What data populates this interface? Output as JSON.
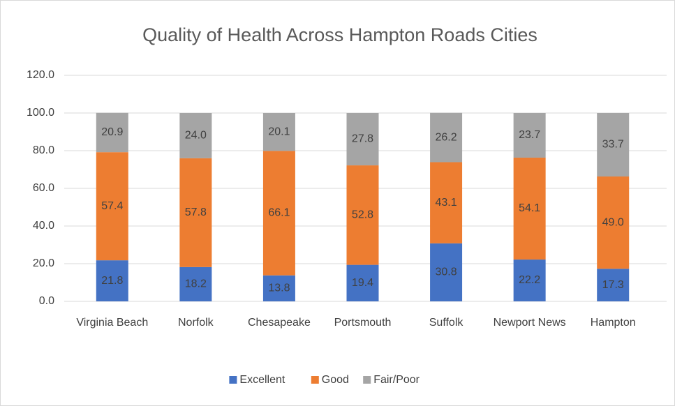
{
  "chart_data": {
    "type": "stacked_bar",
    "title": "Quality of Health Across Hampton Roads Cities",
    "categories": [
      "Virginia Beach",
      "Norfolk",
      "Chesapeake",
      "Portsmouth",
      "Suffolk",
      "Newport News",
      "Hampton"
    ],
    "series": [
      {
        "name": "Excellent",
        "color": "#4472c4",
        "values": [
          21.8,
          18.2,
          13.8,
          19.4,
          30.8,
          22.2,
          17.3
        ],
        "value_labels": [
          "21.8",
          "18.2",
          "13.8",
          "19.4",
          "30.8",
          "22.2",
          "17.3"
        ]
      },
      {
        "name": "Good",
        "color": "#ed7d31",
        "values": [
          57.4,
          57.8,
          66.1,
          52.8,
          43.1,
          54.1,
          49.0
        ],
        "value_labels": [
          "57.4",
          "57.8",
          "66.1",
          "52.8",
          "43.1",
          "54.1",
          "49.0"
        ]
      },
      {
        "name": "Fair/Poor",
        "color": "#a5a5a5",
        "values": [
          20.9,
          24.0,
          20.1,
          27.8,
          26.2,
          23.7,
          33.7
        ],
        "value_labels": [
          "20.9",
          "24.0",
          "20.1",
          "27.8",
          "26.2",
          "23.7",
          "33.7"
        ]
      }
    ],
    "ylim": [
      0,
      120
    ],
    "yticks": [
      {
        "value": 0,
        "label": "0.0"
      },
      {
        "value": 20,
        "label": "20.0"
      },
      {
        "value": 40,
        "label": "40.0"
      },
      {
        "value": 60,
        "label": "60.0"
      },
      {
        "value": 80,
        "label": "80.0"
      },
      {
        "value": 100,
        "label": "100.0"
      },
      {
        "value": 120,
        "label": "120.0"
      }
    ],
    "grid": true,
    "legend": "bottom"
  }
}
